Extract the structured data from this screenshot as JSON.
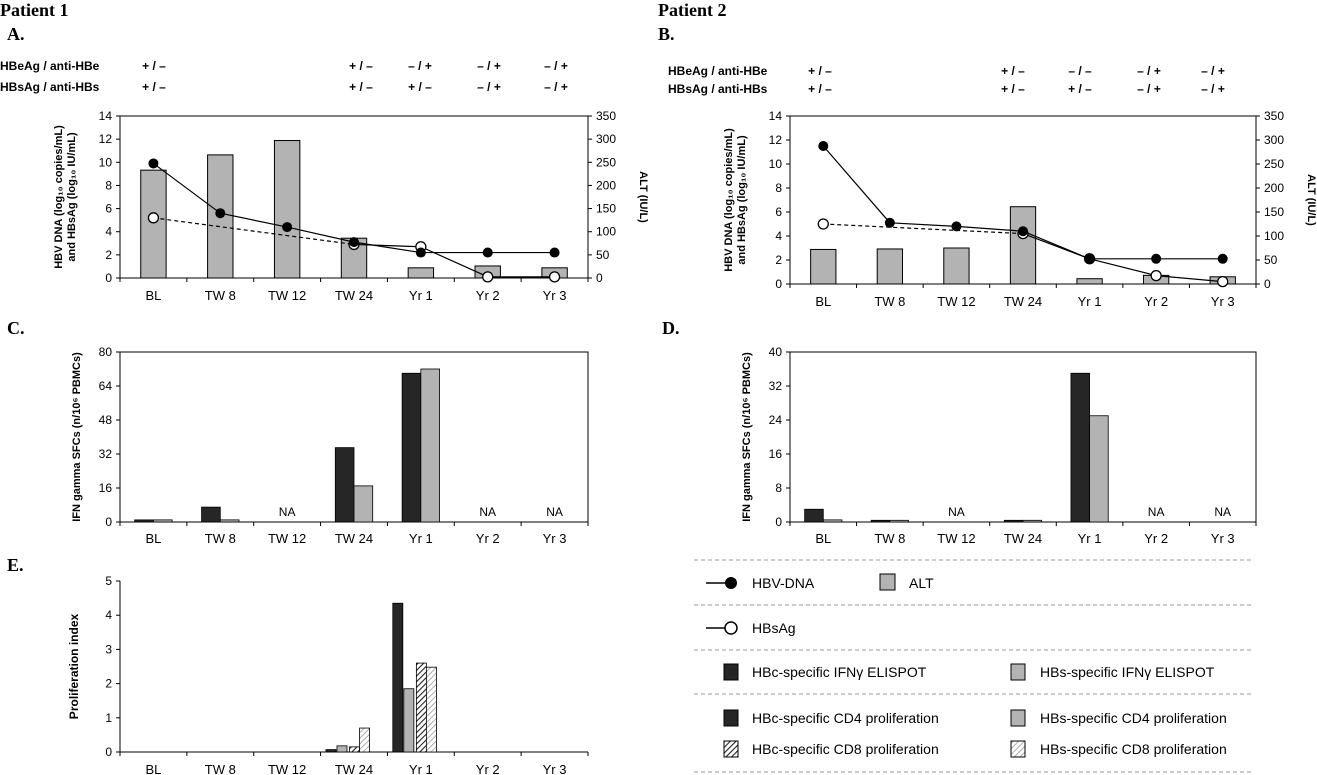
{
  "labels": {
    "patient1": "Patient 1",
    "patient2": "Patient 2",
    "panelA": "A.",
    "panelB": "B.",
    "panelC": "C.",
    "panelD": "D.",
    "panelE": "E.",
    "hbeag_label": "HBeAg / anti-HBe",
    "hbsag_label": "HBsAg / anti-HBs",
    "na": "NA"
  },
  "timepoints": [
    "BL",
    "TW 8",
    "TW 12",
    "TW 24",
    "Yr 1",
    "Yr 2",
    "Yr 3"
  ],
  "colors": {
    "alt_bar": "#b3b3b3",
    "hbc_bar": "#262626",
    "hbs_bar": "#b3b3b3",
    "marker_fill": "#000000",
    "open_marker_fill": "#ffffff",
    "axis": "#000000",
    "divider": "#9a9a9a"
  },
  "serology": {
    "patient1": {
      "hbeag": [
        "+ / –",
        "",
        "",
        "+ / –",
        "– / +",
        "– / +",
        "– / +"
      ],
      "hbsag": [
        "+ / –",
        "",
        "",
        "+ / –",
        "+ / –",
        "– / +",
        "– / +"
      ]
    },
    "patient2": {
      "hbeag": [
        "+ / –",
        "",
        "",
        "+ / –",
        "– / –",
        "– / +",
        "– / +"
      ],
      "hbsag": [
        "+ / –",
        "",
        "",
        "+ / –",
        "+ / –",
        "– / +",
        "– / +"
      ]
    }
  },
  "chart_data": [
    {
      "panel": "A",
      "type": "bar+line",
      "categories": [
        "BL",
        "TW 8",
        "TW 12",
        "TW 24",
        "Yr 1",
        "Yr 2",
        "Yr 3"
      ],
      "ylabel_left": [
        "HBV DNA (log₁₀ copies/mL)",
        "and HBsAg (log₁₀ IU/mL)"
      ],
      "ylabel_right": "ALT (IU/L)",
      "ylim_left": [
        0,
        14
      ],
      "ylim_right": [
        0,
        350
      ],
      "yticks_left": [
        0,
        2,
        4,
        6,
        8,
        10,
        12,
        14
      ],
      "yticks_right": [
        0,
        50,
        100,
        150,
        200,
        250,
        300,
        350
      ],
      "series": [
        {
          "name": "ALT",
          "kind": "bar",
          "axis": "right",
          "values": [
            233,
            266,
            297,
            86,
            22,
            26,
            22
          ]
        },
        {
          "name": "HBV-DNA",
          "kind": "line-filled",
          "axis": "left",
          "values": [
            9.9,
            5.6,
            4.4,
            3.1,
            2.2,
            2.2,
            2.2
          ]
        },
        {
          "name": "HBsAg",
          "kind": "line-open-dashed",
          "axis": "left",
          "values": [
            5.2,
            null,
            null,
            2.9,
            2.7,
            0.1,
            0.1
          ]
        }
      ]
    },
    {
      "panel": "B",
      "type": "bar+line",
      "categories": [
        "BL",
        "TW 8",
        "TW 12",
        "TW 24",
        "Yr 1",
        "Yr 2",
        "Yr 3"
      ],
      "ylabel_left": [
        "HBV DNA (log₁₀ copies/mL)",
        "and HBsAg (log₁₀ IU/mL)"
      ],
      "ylabel_right": "ALT (IU/L)",
      "ylim_left": [
        0,
        14
      ],
      "ylim_right": [
        0,
        350
      ],
      "yticks_left": [
        0,
        2,
        4,
        6,
        8,
        10,
        12,
        14
      ],
      "yticks_right": [
        0,
        50,
        100,
        150,
        200,
        250,
        300,
        350
      ],
      "series": [
        {
          "name": "ALT",
          "kind": "bar",
          "axis": "right",
          "values": [
            72,
            73,
            75,
            161,
            11,
            18,
            15
          ]
        },
        {
          "name": "HBV-DNA",
          "kind": "line-filled",
          "axis": "left",
          "values": [
            11.5,
            5.1,
            4.8,
            4.4,
            2.1,
            2.1,
            2.1
          ]
        },
        {
          "name": "HBsAg",
          "kind": "line-open-dashed",
          "axis": "left",
          "values": [
            5.0,
            null,
            null,
            4.2,
            2.1,
            0.7,
            0.2
          ]
        }
      ]
    },
    {
      "panel": "C",
      "type": "bar",
      "categories": [
        "BL",
        "TW 8",
        "TW 12",
        "TW 24",
        "Yr 1",
        "Yr 2",
        "Yr 3"
      ],
      "ylabel": "IFN gamma SFCs (n/10⁶ PBMCs)",
      "ylim": [
        0,
        80
      ],
      "yticks": [
        0,
        16,
        32,
        48,
        64,
        80
      ],
      "na_categories": [
        "TW 12",
        "Yr 2",
        "Yr 3"
      ],
      "series": [
        {
          "name": "HBc-specific IFNγ ELISPOT",
          "values": [
            1,
            7,
            null,
            35,
            70,
            null,
            null
          ]
        },
        {
          "name": "HBs-specific IFNγ ELISPOT",
          "values": [
            1,
            1,
            null,
            17,
            72,
            null,
            null
          ]
        }
      ]
    },
    {
      "panel": "D",
      "type": "bar",
      "categories": [
        "BL",
        "TW 8",
        "TW 12",
        "TW 24",
        "Yr 1",
        "Yr 2",
        "Yr 3"
      ],
      "ylabel": "IFN gamma SFCs (n/10⁶ PBMCs)",
      "ylim": [
        0,
        40
      ],
      "yticks": [
        0,
        8,
        16,
        24,
        32,
        40
      ],
      "na_categories": [
        "TW 12",
        "Yr 2",
        "Yr 3"
      ],
      "series": [
        {
          "name": "HBc-specific IFNγ ELISPOT",
          "values": [
            3,
            0.4,
            null,
            0.4,
            35,
            null,
            null
          ]
        },
        {
          "name": "HBs-specific IFNγ ELISPOT",
          "values": [
            0.5,
            0.4,
            null,
            0.4,
            25,
            null,
            null
          ]
        }
      ]
    },
    {
      "panel": "E",
      "type": "bar",
      "categories": [
        "BL",
        "TW 8",
        "TW 12",
        "TW 24",
        "Yr 1",
        "Yr 2",
        "Yr 3"
      ],
      "ylabel": "Proliferation index",
      "ylim": [
        0,
        5
      ],
      "yticks": [
        0,
        1,
        2,
        3,
        4,
        5
      ],
      "series": [
        {
          "name": "HBc-specific CD4 proliferation",
          "values": [
            null,
            null,
            null,
            0.07,
            4.35,
            null,
            null
          ]
        },
        {
          "name": "HBs-specific CD4 proliferation",
          "values": [
            null,
            null,
            null,
            0.18,
            1.85,
            null,
            null
          ]
        },
        {
          "name": "HBc-specific CD8 proliferation",
          "values": [
            null,
            null,
            null,
            0.15,
            2.6,
            null,
            null
          ]
        },
        {
          "name": "HBs-specific CD8 proliferation",
          "values": [
            null,
            null,
            null,
            0.7,
            2.48,
            null,
            null
          ]
        }
      ]
    }
  ],
  "legend": {
    "hbv_dna": "HBV-DNA",
    "alt": "ALT",
    "hbsag": "HBsAg",
    "hbc_ifn": "HBc-specific IFNγ ELISPOT",
    "hbs_ifn": "HBs-specific IFNγ ELISPOT",
    "hbc_cd4": "HBc-specific CD4 proliferation",
    "hbs_cd4": "HBs-specific CD4 proliferation",
    "hbc_cd8": "HBc-specific CD8 proliferation",
    "hbs_cd8": "HBs-specific CD8 proliferation"
  }
}
